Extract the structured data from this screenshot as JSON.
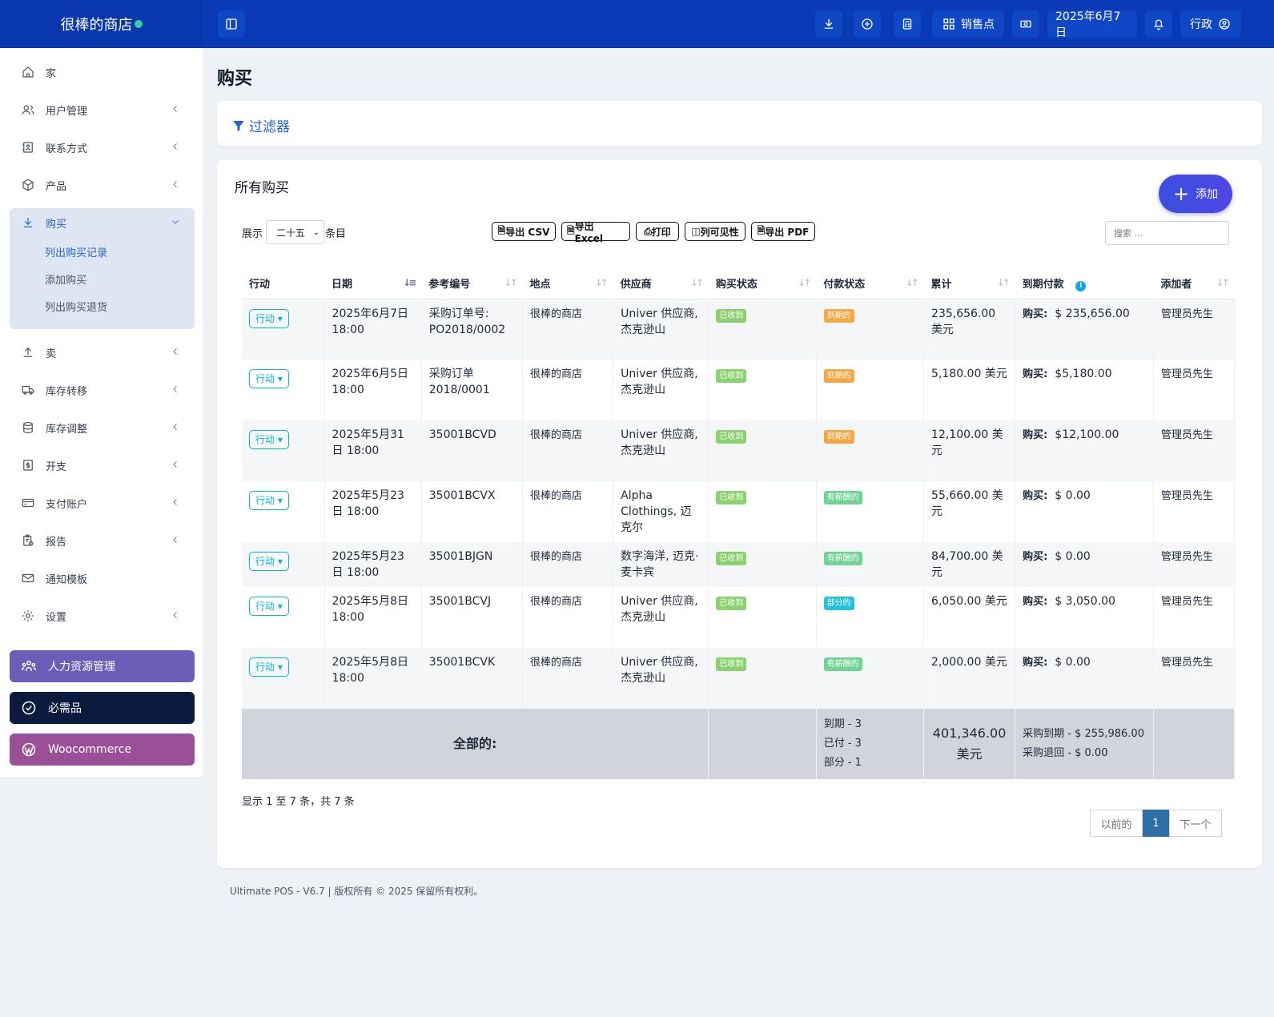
{
  "brand": {
    "name": "很棒的商店"
  },
  "topbar": {
    "pos_label": "销售点",
    "date_label": "2025年6月7日",
    "user_label": "行政"
  },
  "sidebar": {
    "items": [
      {
        "label": "家",
        "icon": "home-icon"
      },
      {
        "label": "用户管理",
        "icon": "users-icon"
      },
      {
        "label": "联系方式",
        "icon": "contacts-icon"
      },
      {
        "label": "产品",
        "icon": "box-icon"
      },
      {
        "label": "购买",
        "icon": "download-icon"
      },
      {
        "label": "卖",
        "icon": "upload-icon"
      },
      {
        "label": "库存转移",
        "icon": "truck-icon"
      },
      {
        "label": "库存调整",
        "icon": "database-icon"
      },
      {
        "label": "开支",
        "icon": "dollar-icon"
      },
      {
        "label": "支付账户",
        "icon": "card-icon"
      },
      {
        "label": "报告",
        "icon": "report-icon"
      },
      {
        "label": "通知模板",
        "icon": "mail-icon"
      },
      {
        "label": "设置",
        "icon": "gear-icon"
      }
    ],
    "purchase_sub": [
      "列出购买记录",
      "添加购买",
      "列出购买退货"
    ],
    "promos": [
      "人力资源管理",
      "必需品",
      "Woocommerce"
    ]
  },
  "page": {
    "title": "购买",
    "filter_label": "过滤器"
  },
  "list": {
    "title": "所有购买",
    "add_label": "添加",
    "show_label": "展示",
    "entries_select": "二十五",
    "entries_label": "条目",
    "search_placeholder": "搜索 ...",
    "buttons": [
      "导出 CSV",
      "导出 Excel",
      "打印",
      "列可见性",
      "导出 PDF"
    ],
    "columns": [
      "行动",
      "日期",
      "参考编号",
      "地点",
      "供应商",
      "购买状态",
      "付款状态",
      "累计",
      "到期付款",
      "添加者"
    ],
    "rows": [
      {
        "action": "行动",
        "date": "2025年6月7日 18:00",
        "ref": "采购订单号: PO2018/0002",
        "location": "很棒的商店",
        "supplier": "Univer 供应商, 杰克逊山",
        "status": "已收到",
        "payment": "到期的",
        "total": "235,656.00 美元",
        "due_label": "购买:",
        "due": "$ 235,656.00",
        "added_by": "管理员先生"
      },
      {
        "action": "行动",
        "date": "2025年6月5日 18:00",
        "ref": "采购订单 2018/0001",
        "location": "很棒的商店",
        "supplier": "Univer 供应商, 杰克逊山",
        "status": "已收到",
        "payment": "到期的",
        "total": "5,180.00 美元",
        "due_label": "购买:",
        "due": "$5,180.00",
        "added_by": "管理员先生"
      },
      {
        "action": "行动",
        "date": "2025年5月31日 18:00",
        "ref": "35001BCVD",
        "location": "很棒的商店",
        "supplier": "Univer 供应商, 杰克逊山",
        "status": "已收到",
        "payment": "到期的",
        "total": "12,100.00 美元",
        "due_label": "购买:",
        "due": "$12,100.00",
        "added_by": "管理员先生"
      },
      {
        "action": "行动",
        "date": "2025年5月23日 18:00",
        "ref": "35001BCVX",
        "location": "很棒的商店",
        "supplier": "Alpha Clothings, 迈克尔",
        "status": "已收到",
        "payment": "有薪酬的",
        "total": "55,660.00 美元",
        "due_label": "购买:",
        "due": "$ 0.00",
        "added_by": "管理员先生"
      },
      {
        "action": "行动",
        "date": "2025年5月23日 18:00",
        "ref": "35001BJGN",
        "location": "很棒的商店",
        "supplier": "数字海洋, 迈克·麦卡宾",
        "status": "已收到",
        "payment": "有薪酬的",
        "total": "84,700.00 美元",
        "due_label": "购买:",
        "due": "$ 0.00",
        "added_by": "管理员先生"
      },
      {
        "action": "行动",
        "date": "2025年5月8日 18:00",
        "ref": "35001BCVJ",
        "location": "很棒的商店",
        "supplier": "Univer 供应商, 杰克逊山",
        "status": "已收到",
        "payment": "部分的",
        "total": "6,050.00 美元",
        "due_label": "购买:",
        "due": "$ 3,050.00",
        "added_by": "管理员先生"
      },
      {
        "action": "行动",
        "date": "2025年5月8日 18:00",
        "ref": "35001BCVK",
        "location": "很棒的商店",
        "supplier": "Univer 供应商, 杰克逊山",
        "status": "已收到",
        "payment": "有薪酬的",
        "total": "2,000.00 美元",
        "due_label": "购买:",
        "due": "$ 0.00",
        "added_by": "管理员先生"
      }
    ],
    "totals": {
      "label": "全部的:",
      "payment_lines": [
        "到期 - 3",
        "已付 - 3",
        "部分 - 1"
      ],
      "amount": "401,346.00 美元",
      "due_lines": [
        "采购到期 - $ 255,986.00",
        "采购退回 - $ 0.00"
      ]
    },
    "info": "显示 1 至 7 条，共 7 条",
    "pagination": {
      "prev": "以前的",
      "current": "1",
      "next": "下一个"
    }
  },
  "footer": "Ultimate POS - V6.7 | 版权所有 © 2025 保留所有权利。",
  "colors": {
    "primary": "#0a3ab5",
    "received": "#8bd170",
    "due": "#f5a742",
    "paid": "#6fd394",
    "partial": "#22c1dc"
  }
}
